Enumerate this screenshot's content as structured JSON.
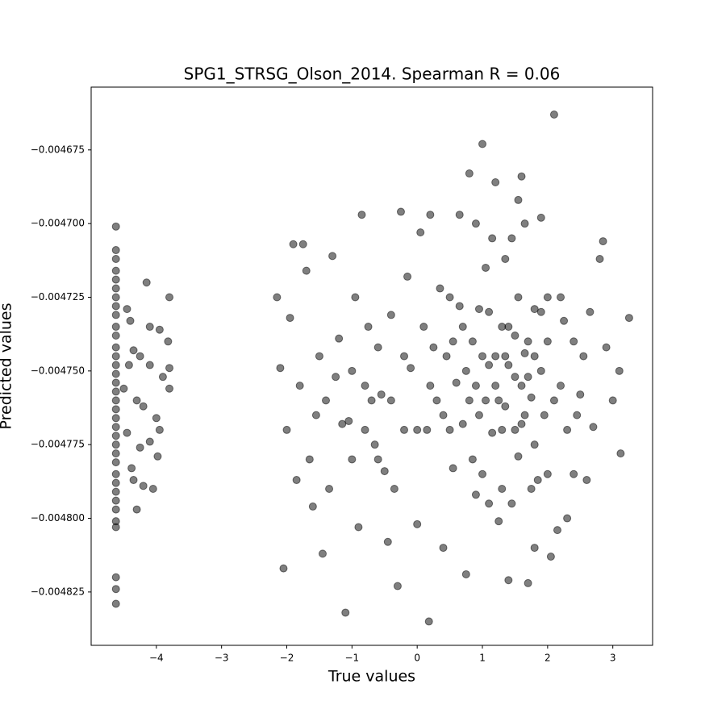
{
  "chart_data": {
    "type": "scatter",
    "title": "SPG1_STRSG_Olson_2014. Spearman R = 0.06",
    "x_label": "True values",
    "y_label": "Predicted values",
    "color": "#000000",
    "opacity": 0.5,
    "xlim": [
      -5.0,
      3.61
    ],
    "ylim": [
      -0.0048431,
      -0.0046537
    ],
    "xticks": [
      {
        "value": -4,
        "label": "−4"
      },
      {
        "value": -3,
        "label": "−3"
      },
      {
        "value": -2,
        "label": "−2"
      },
      {
        "value": -1,
        "label": "−1"
      },
      0,
      1,
      2,
      3
    ],
    "yticks": [
      {
        "value": -0.004825,
        "label": "−0.004825"
      },
      {
        "value": -0.0048,
        "label": "−0.004800"
      },
      {
        "value": -0.004775,
        "label": "−0.004775"
      },
      {
        "value": -0.00475,
        "label": "−0.004750"
      },
      {
        "value": -0.004725,
        "label": "−0.004725"
      },
      {
        "value": -0.0047,
        "label": "−0.004700"
      },
      {
        "value": -0.004675,
        "label": "−0.004675"
      }
    ],
    "x": [
      -4.62,
      -4.62,
      -4.62,
      -4.62,
      -4.62,
      -4.62,
      -4.62,
      -4.62,
      -4.62,
      -4.62,
      -4.62,
      -4.62,
      -4.62,
      -4.62,
      -4.62,
      -4.62,
      -4.62,
      -4.62,
      -4.62,
      -4.62,
      -4.62,
      -4.62,
      -4.62,
      -4.62,
      -4.62,
      -4.62,
      -4.62,
      -4.62,
      -4.62,
      -4.62,
      -4.62,
      -4.62,
      -4.62,
      -4.62,
      -4.62,
      -4.45,
      -4.4,
      -4.35,
      -4.3,
      -4.25,
      -4.5,
      -4.45,
      -4.38,
      -4.35,
      -4.2,
      -4.05,
      -4.15,
      -4.1,
      -3.95,
      -3.8,
      -3.82,
      -3.8,
      -3.8,
      -3.9,
      -4.0,
      -3.95,
      -4.1,
      -4.25,
      -4.1,
      -4.2,
      -3.98,
      -4.3,
      -4.42,
      -2.1,
      -2.05,
      -2.15,
      -1.9,
      -1.75,
      -1.7,
      -1.95,
      -2.0,
      -1.85,
      -1.6,
      -1.5,
      -1.4,
      -1.3,
      -1.2,
      -1.1,
      -1.05,
      -0.95,
      -0.9,
      -0.85,
      -0.8,
      -0.7,
      -0.6,
      -0.5,
      -0.45,
      -0.4,
      -0.3,
      -0.25,
      -0.2,
      -0.1,
      0.0,
      0.05,
      0.1,
      0.15,
      0.18,
      0.2,
      0.3,
      0.4,
      0.45,
      0.5,
      0.55,
      0.6,
      0.65,
      0.7,
      0.75,
      0.8,
      0.85,
      0.9,
      0.95,
      1.0,
      1.05,
      1.1,
      1.15,
      1.2,
      1.25,
      1.3,
      1.35,
      1.4,
      1.45,
      1.5,
      1.55,
      1.6,
      1.65,
      1.7,
      1.75,
      1.8,
      1.85,
      1.9,
      1.95,
      2.0,
      2.05,
      2.1,
      2.15,
      2.2,
      2.25,
      2.3,
      2.4,
      2.5,
      2.6,
      2.7,
      2.8,
      2.85,
      2.9,
      3.0,
      3.1,
      3.12,
      3.25,
      -1.8,
      -1.65,
      -1.55,
      -1.45,
      -1.35,
      -1.25,
      -1.15,
      -1.0,
      -0.75,
      -0.65,
      -0.55,
      -0.35,
      -0.15,
      0.25,
      0.35,
      0.5,
      0.7,
      0.8,
      0.9,
      1.0,
      1.1,
      1.2,
      1.3,
      1.4,
      1.5,
      1.6,
      1.7,
      1.8,
      1.9,
      2.0,
      2.1,
      1.25,
      1.35,
      1.45,
      1.55,
      1.65,
      1.75,
      1.15,
      1.05,
      0.95,
      0.85,
      0.75,
      0.65,
      0.55,
      1.2,
      1.3,
      1.4,
      1.5,
      1.6,
      1.7,
      1.8,
      1.9,
      2.0,
      1.1,
      0.4,
      0.2,
      0.0,
      -0.2,
      -0.4,
      -0.6,
      -0.8,
      -1.0,
      1.35,
      1.55,
      1.65,
      1.8,
      2.3,
      2.45,
      2.55,
      2.65,
      2.4,
      2.2,
      1.0,
      0.9
    ],
    "values": [
      -0.004701,
      -0.004709,
      -0.004712,
      -0.004716,
      -0.004719,
      -0.004722,
      -0.004725,
      -0.004728,
      -0.004731,
      -0.004735,
      -0.004738,
      -0.004742,
      -0.004745,
      -0.004748,
      -0.004751,
      -0.004754,
      -0.004757,
      -0.00476,
      -0.004763,
      -0.004766,
      -0.004769,
      -0.004772,
      -0.004775,
      -0.004778,
      -0.004781,
      -0.004785,
      -0.004788,
      -0.004791,
      -0.004794,
      -0.004797,
      -0.004801,
      -0.004803,
      -0.00482,
      -0.004824,
      -0.004829,
      -0.004729,
      -0.004733,
      -0.004743,
      -0.00476,
      -0.004776,
      -0.004756,
      -0.004771,
      -0.004783,
      -0.004787,
      -0.004789,
      -0.00479,
      -0.00472,
      -0.004735,
      -0.004736,
      -0.004725,
      -0.00474,
      -0.004749,
      -0.004756,
      -0.004752,
      -0.004766,
      -0.00477,
      -0.004774,
      -0.004745,
      -0.004748,
      -0.004762,
      -0.004779,
      -0.004797,
      -0.004748,
      -0.004749,
      -0.004817,
      -0.004725,
      -0.004707,
      -0.004707,
      -0.004716,
      -0.004732,
      -0.00477,
      -0.004787,
      -0.004796,
      -0.004745,
      -0.00476,
      -0.004711,
      -0.004739,
      -0.004832,
      -0.004767,
      -0.004725,
      -0.004803,
      -0.004697,
      -0.004755,
      -0.00476,
      -0.004742,
      -0.004784,
      -0.004808,
      -0.004731,
      -0.004823,
      -0.004696,
      -0.00477,
      -0.004749,
      -0.004802,
      -0.004703,
      -0.004735,
      -0.00477,
      -0.004835,
      -0.004697,
      -0.00476,
      -0.00481,
      -0.004745,
      -0.004725,
      -0.004783,
      -0.004754,
      -0.004697,
      -0.004768,
      -0.004819,
      -0.004683,
      -0.00474,
      -0.004792,
      -0.004729,
      -0.004673,
      -0.00476,
      -0.004748,
      -0.004771,
      -0.004686,
      -0.004801,
      -0.004735,
      -0.004762,
      -0.004821,
      -0.004705,
      -0.004752,
      -0.004779,
      -0.004684,
      -0.004744,
      -0.004822,
      -0.004759,
      -0.004729,
      -0.004787,
      -0.004698,
      -0.004765,
      -0.00474,
      -0.004813,
      -0.004663,
      -0.004804,
      -0.004755,
      -0.004733,
      -0.00477,
      -0.00474,
      -0.004758,
      -0.004787,
      -0.004769,
      -0.004712,
      -0.004706,
      -0.004742,
      -0.00476,
      -0.00475,
      -0.004778,
      -0.004732,
      -0.004755,
      -0.00478,
      -0.004765,
      -0.004812,
      -0.00479,
      -0.004752,
      -0.004768,
      -0.00478,
      -0.004735,
      -0.004775,
      -0.004758,
      -0.00479,
      -0.004718,
      -0.004742,
      -0.004722,
      -0.00477,
      -0.004735,
      -0.00476,
      -0.004755,
      -0.004785,
      -0.00473,
      -0.004745,
      -0.00479,
      -0.004735,
      -0.00477,
      -0.004755,
      -0.00474,
      -0.004775,
      -0.00475,
      -0.004725,
      -0.00476,
      -0.00476,
      -0.004745,
      -0.004795,
      -0.004725,
      -0.004765,
      -0.00479,
      -0.004705,
      -0.004715,
      -0.004765,
      -0.00478,
      -0.00475,
      -0.004728,
      -0.00474,
      -0.004755,
      -0.00477,
      -0.004748,
      -0.004738,
      -0.004768,
      -0.004752,
      -0.004745,
      -0.00473,
      -0.004785,
      -0.004795,
      -0.004765,
      -0.004755,
      -0.00477,
      -0.004745,
      -0.00476,
      -0.00478,
      -0.00477,
      -0.00475,
      -0.004712,
      -0.004692,
      -0.0047,
      -0.00481,
      -0.0048,
      -0.004765,
      -0.004745,
      -0.00473,
      -0.004785,
      -0.004725,
      -0.004745,
      -0.0047
    ]
  }
}
